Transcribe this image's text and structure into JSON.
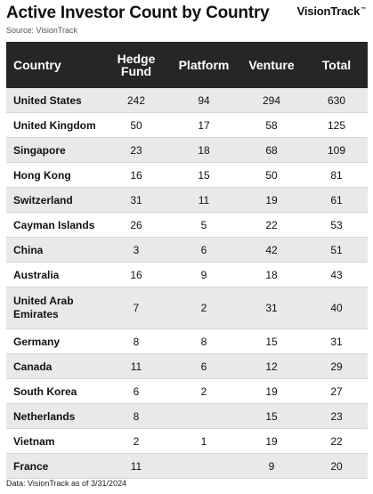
{
  "chart_data": {
    "type": "table",
    "title": "Active Investor Count by Country",
    "subtitle": "Source: VisionTrack",
    "columns": [
      "Country",
      "Hedge Fund",
      "Platform",
      "Venture",
      "Total"
    ],
    "rows": [
      {
        "country": "United States",
        "hedge_fund": "242",
        "platform": "94",
        "venture": "294",
        "total": "630"
      },
      {
        "country": "United Kingdom",
        "hedge_fund": "50",
        "platform": "17",
        "venture": "58",
        "total": "125"
      },
      {
        "country": "Singapore",
        "hedge_fund": "23",
        "platform": "18",
        "venture": "68",
        "total": "109"
      },
      {
        "country": "Hong Kong",
        "hedge_fund": "16",
        "platform": "15",
        "venture": "50",
        "total": "81"
      },
      {
        "country": "Switzerland",
        "hedge_fund": "31",
        "platform": "11",
        "venture": "19",
        "total": "61"
      },
      {
        "country": "Cayman Islands",
        "hedge_fund": "26",
        "platform": "5",
        "venture": "22",
        "total": "53"
      },
      {
        "country": "China",
        "hedge_fund": "3",
        "platform": "6",
        "venture": "42",
        "total": "51"
      },
      {
        "country": "Australia",
        "hedge_fund": "16",
        "platform": "9",
        "venture": "18",
        "total": "43"
      },
      {
        "country": "United Arab Emirates",
        "hedge_fund": "7",
        "platform": "2",
        "venture": "31",
        "total": "40"
      },
      {
        "country": "Germany",
        "hedge_fund": "8",
        "platform": "8",
        "venture": "15",
        "total": "31"
      },
      {
        "country": "Canada",
        "hedge_fund": "11",
        "platform": "6",
        "venture": "12",
        "total": "29"
      },
      {
        "country": "South Korea",
        "hedge_fund": "6",
        "platform": "2",
        "venture": "19",
        "total": "27"
      },
      {
        "country": "Netherlands",
        "hedge_fund": "8",
        "platform": "",
        "venture": "15",
        "total": "23"
      },
      {
        "country": "Vietnam",
        "hedge_fund": "2",
        "platform": "1",
        "venture": "19",
        "total": "22"
      },
      {
        "country": "France",
        "hedge_fund": "11",
        "platform": "",
        "venture": "9",
        "total": "20"
      }
    ]
  },
  "brand": {
    "name": "VisionTrack",
    "mark": "™"
  },
  "footer": "Data: VisionTrack as of 3/31/2024",
  "colors": {
    "header_bg": "#262626",
    "row_shade": "#e9e9e9",
    "divider": "#d6d6d6"
  }
}
